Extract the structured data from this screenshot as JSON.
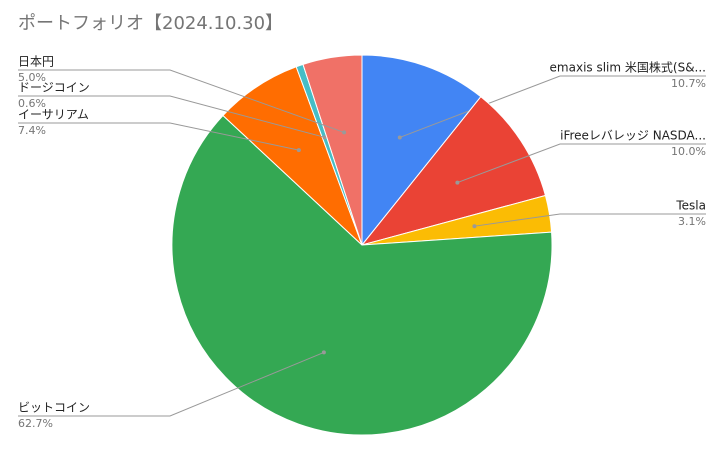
{
  "chart_data": {
    "type": "pie",
    "title": "ポートフォリオ【2024.10.30】",
    "categories": [
      "emaxis slim 米国株式(S&...",
      "iFreeレバレッジ NASDA...",
      "Tesla",
      "ビットコイン",
      "イーサリアム",
      "ドージコイン",
      "日本円"
    ],
    "values": [
      10.7,
      10.0,
      3.1,
      62.7,
      7.4,
      0.6,
      5.0
    ],
    "value_labels": [
      "10.7%",
      "10.0%",
      "3.1%",
      "62.7%",
      "7.4%",
      "0.6%",
      "5.0%"
    ],
    "colors": [
      "#4285f4",
      "#ea4335",
      "#fbbc04",
      "#34a853",
      "#ff6d01",
      "#46bdc6",
      "#f07167"
    ]
  }
}
